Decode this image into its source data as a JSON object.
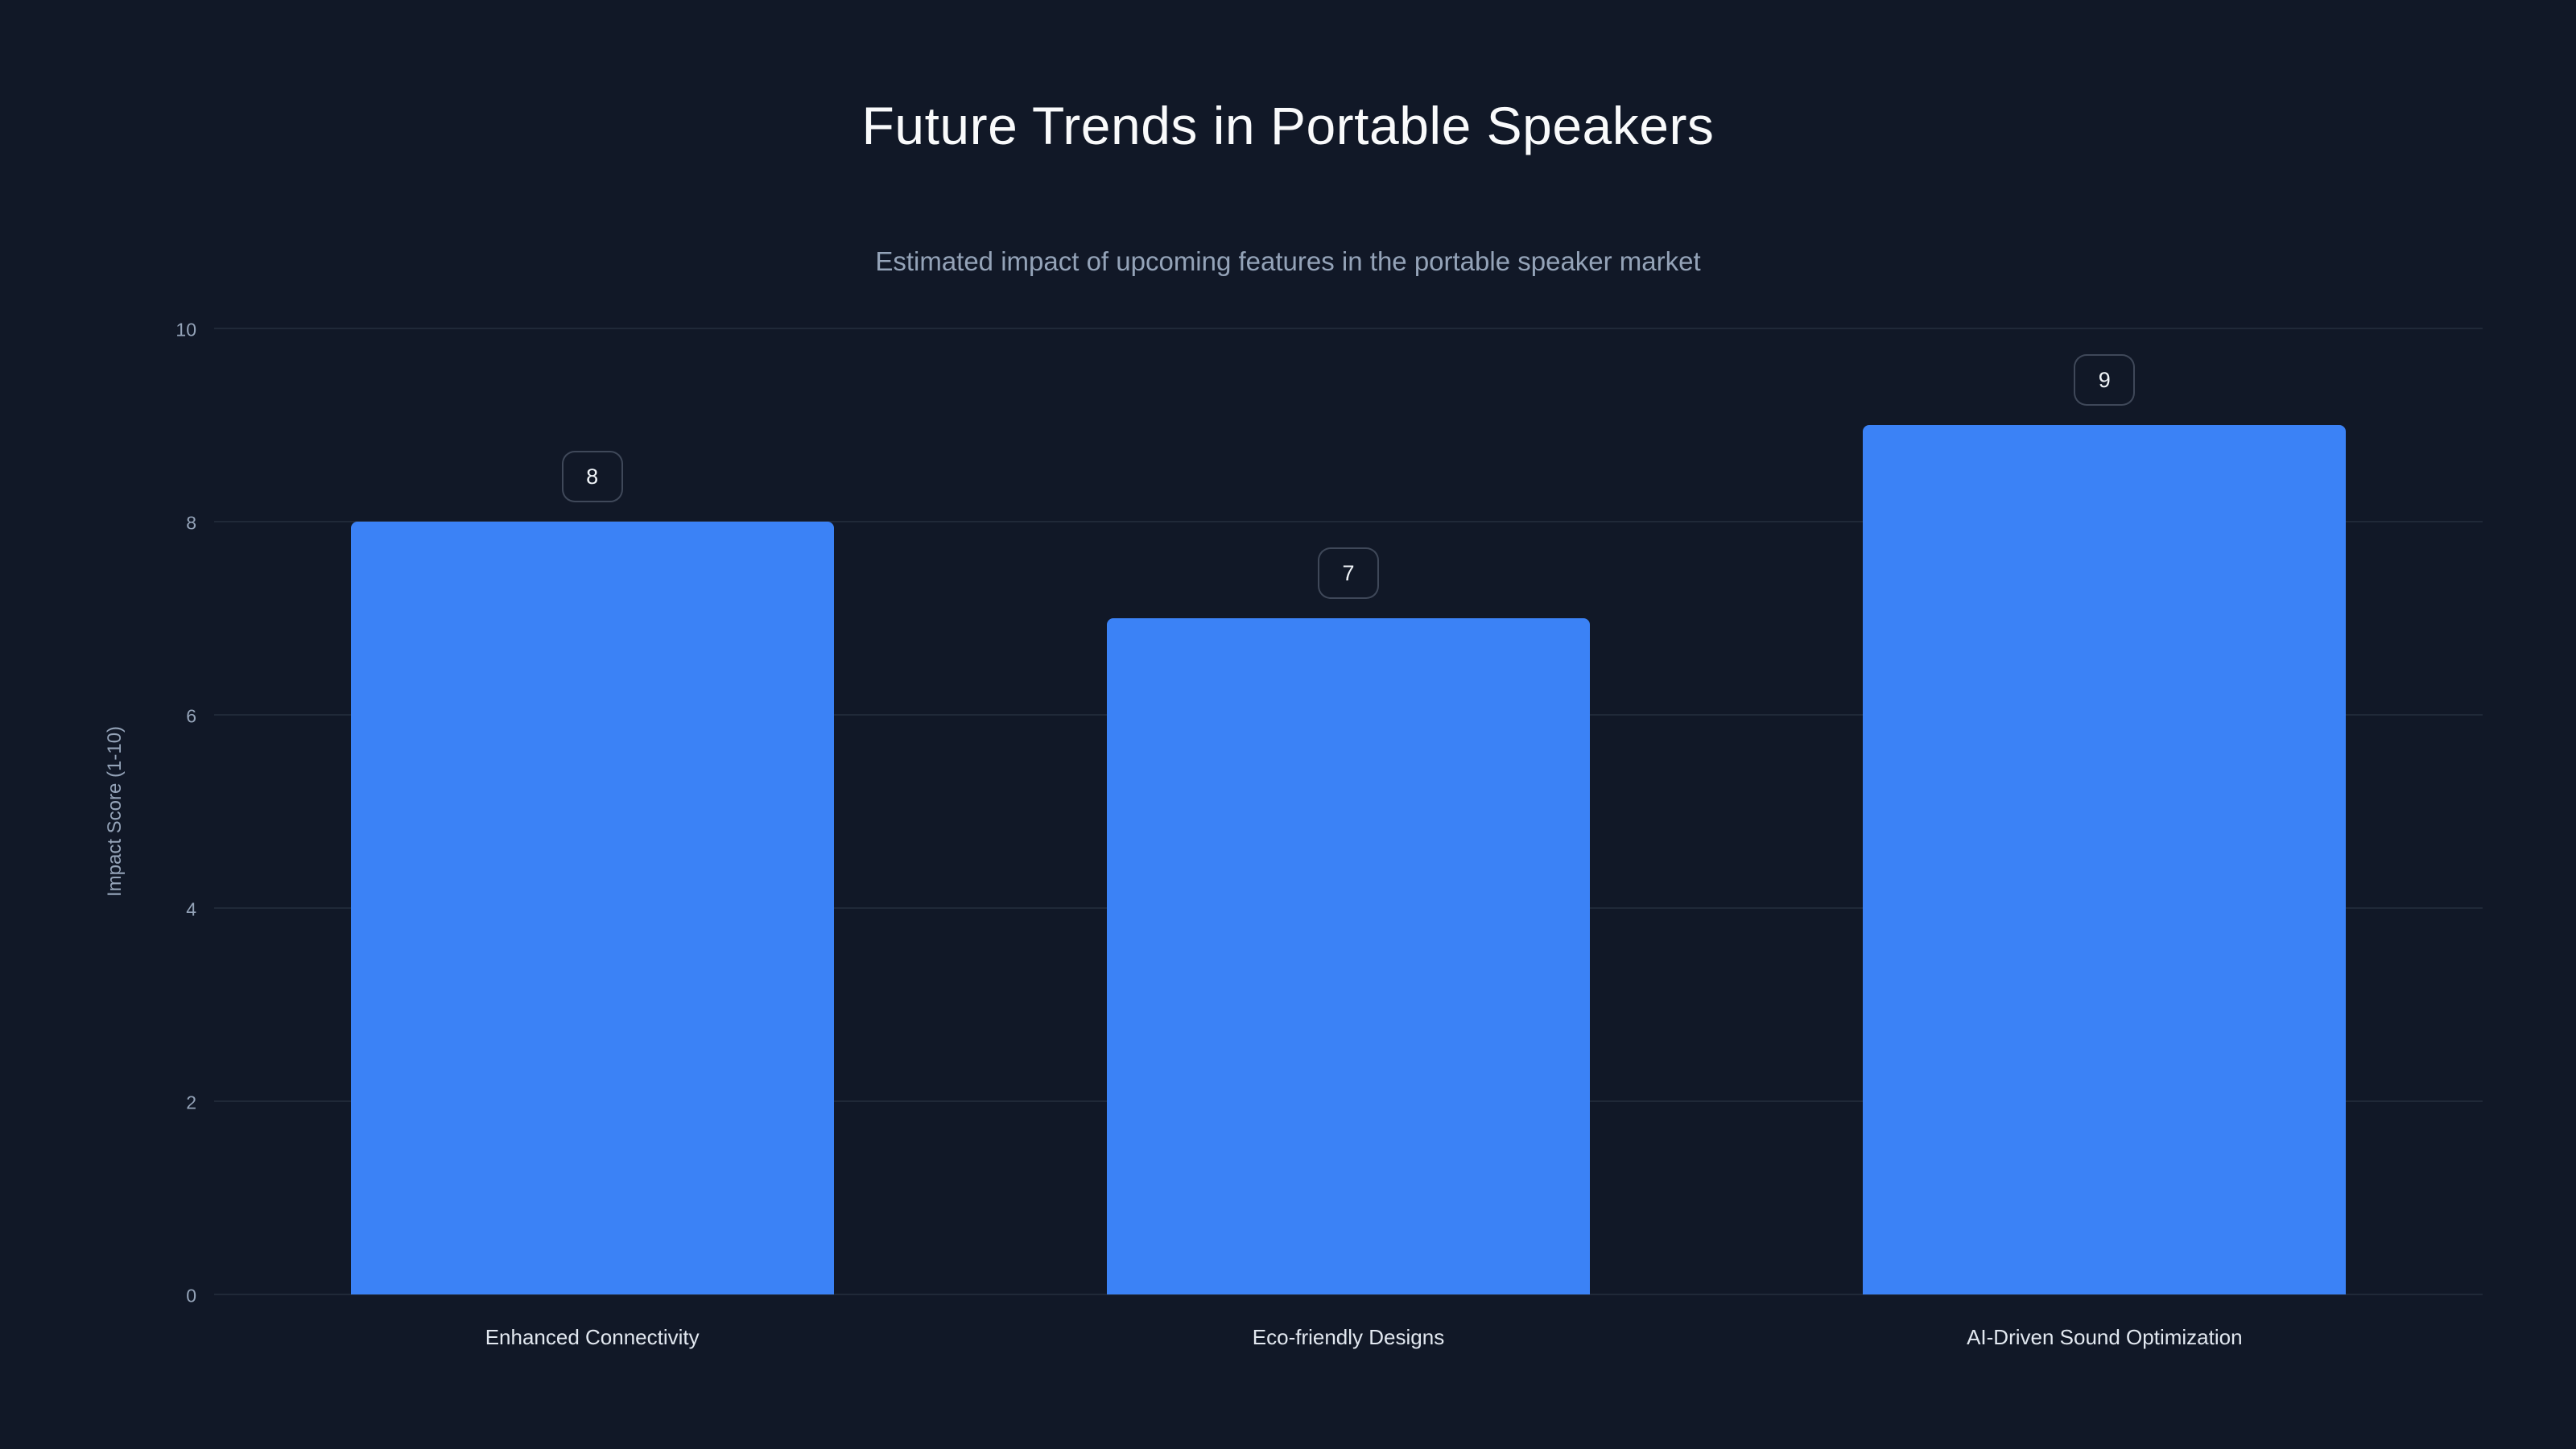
{
  "chart_data": {
    "type": "bar",
    "title": "Future Trends in Portable Speakers",
    "subtitle": "Estimated impact of upcoming features in the portable speaker market",
    "categories": [
      "Enhanced Connectivity",
      "Eco-friendly Designs",
      "AI-Driven Sound Optimization"
    ],
    "values": [
      8,
      7,
      9
    ],
    "xlabel": "",
    "ylabel": "Impact Score (1-10)",
    "ylim": [
      0,
      10
    ],
    "yticks": [
      0,
      2,
      4,
      6,
      8,
      10
    ],
    "grid": true,
    "legend": false,
    "data_labels": [
      "8",
      "7",
      "9"
    ],
    "colors": {
      "background": "#111827",
      "bar": "#3b82f6",
      "grid": "rgba(148,163,184,0.12)",
      "title": "#f9fafb",
      "subtitle": "#94a3b8",
      "tick": "#94a3b8",
      "category": "#e2e8f0",
      "badge_border": "rgba(148,163,184,0.35)",
      "badge_text": "#f1f5f9"
    }
  }
}
